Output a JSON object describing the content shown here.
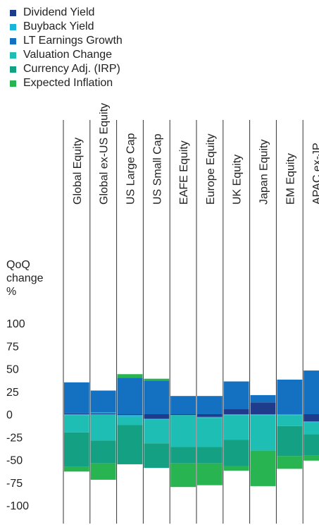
{
  "colors": {
    "dividend_yield": "#1f3c8c",
    "buyback_yield": "#19b4dc",
    "lt_earnings_growth": "#1470c0",
    "valuation_change": "#1ebeb4",
    "currency_adj": "#14a082",
    "expected_inflation": "#28b450"
  },
  "chart_data": {
    "type": "bar",
    "stacked": true,
    "ylabel": [
      "QoQ",
      "change",
      "%"
    ],
    "yticks": [
      100,
      75,
      50,
      25,
      0,
      -25,
      -50,
      -75,
      -100
    ],
    "ylim": [
      -105,
      110
    ],
    "legend_position": "top-left",
    "categories": [
      "Global Equity",
      "Global ex-US Equity",
      "US Large Cap",
      "US Small Cap",
      "EAFE Equity",
      "Europe Equity",
      "UK Equity",
      "Japan Equity",
      "EM Equity",
      "APAC ex-JP"
    ],
    "series": [
      {
        "name": "Dividend Yield",
        "color_key": "dividend_yield",
        "values": [
          1,
          1,
          -1,
          -5,
          -1,
          -3,
          6,
          13,
          0,
          -8
        ]
      },
      {
        "name": "Buyback Yield",
        "color_key": "buyback_yield",
        "values": [
          -1,
          1,
          -2,
          -1,
          0,
          -1,
          -1,
          -1,
          -1,
          -1
        ]
      },
      {
        "name": "LT Earnings Growth",
        "color_key": "lt_earnings_growth",
        "values": [
          34,
          24,
          40,
          37,
          20,
          20,
          30,
          8,
          38,
          48
        ]
      },
      {
        "name": "Valuation Change",
        "color_key": "valuation_change",
        "values": [
          -19,
          -29,
          -9,
          -26,
          -35,
          -32,
          -27,
          -39,
          -12,
          -13
        ]
      },
      {
        "name": "Currency Adj. (IRP)",
        "color_key": "currency_adj",
        "values": [
          -38,
          -25,
          -43,
          -27,
          -18,
          -18,
          -29,
          0,
          -33,
          -23
        ]
      },
      {
        "name": "Expected Inflation",
        "color_key": "expected_inflation",
        "values": [
          -5,
          -18,
          4,
          2,
          -26,
          -24,
          -5,
          -39,
          -14,
          -6
        ]
      }
    ]
  }
}
